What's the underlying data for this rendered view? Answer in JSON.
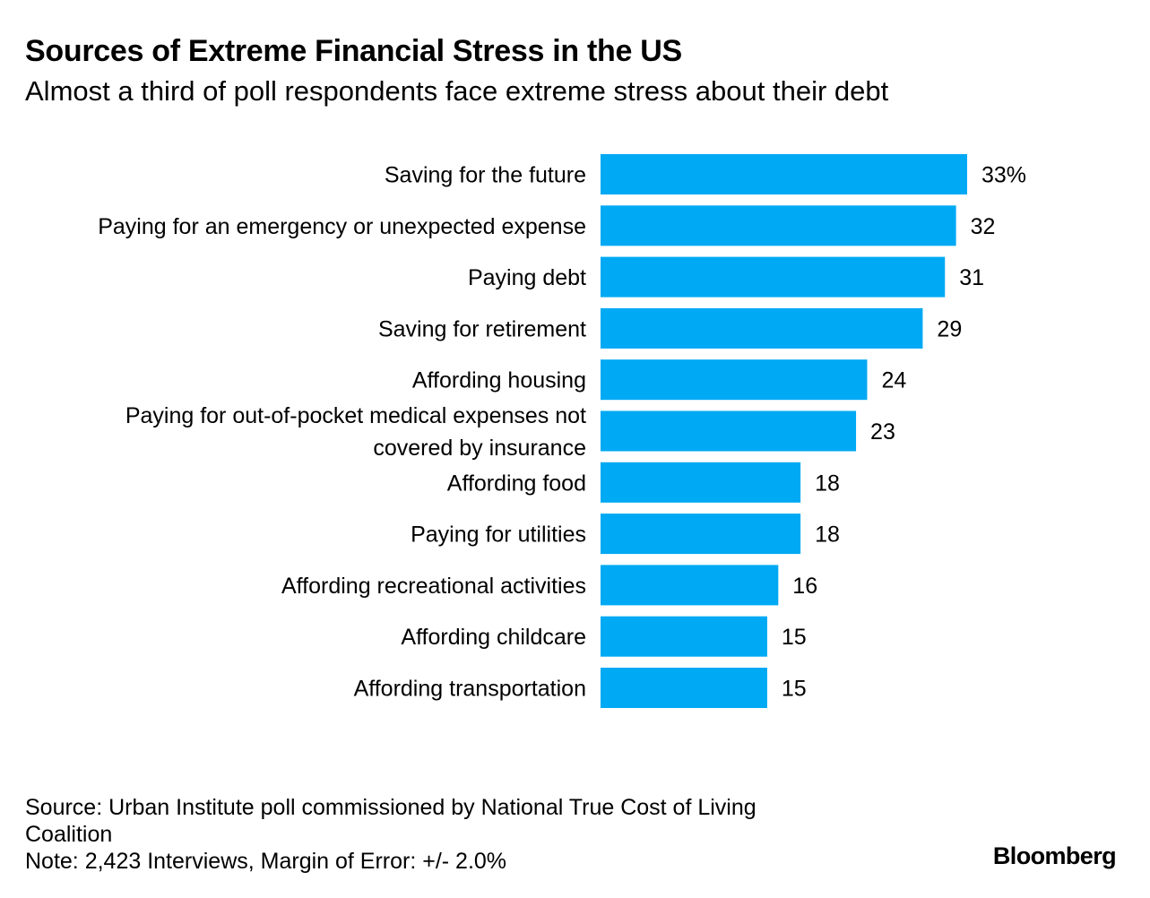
{
  "chart_data": {
    "type": "bar",
    "orientation": "horizontal",
    "title": "Sources of Extreme Financial Stress in the US",
    "subtitle": "Almost a third of poll respondents face extreme stress about their debt",
    "categories": [
      "Saving for the future",
      "Paying for an emergency or unexpected expense",
      "Paying debt",
      "Saving for retirement",
      "Affording housing",
      "Paying for out-of-pocket medical expenses not covered by insurance",
      "Affording food",
      "Paying for utilities",
      "Affording recreational activities",
      "Affording childcare",
      "Affording transportation"
    ],
    "category_lines": [
      [
        "Saving for the future"
      ],
      [
        "Paying for an emergency or unexpected expense"
      ],
      [
        "Paying debt"
      ],
      [
        "Saving for retirement"
      ],
      [
        "Affording housing"
      ],
      [
        "Paying for out-of-pocket medical expenses not",
        "covered by insurance"
      ],
      [
        "Affording food"
      ],
      [
        "Paying for utilities"
      ],
      [
        "Affording recreational activities"
      ],
      [
        "Affording childcare"
      ],
      [
        "Affording transportation"
      ]
    ],
    "values": [
      33,
      32,
      31,
      29,
      24,
      23,
      18,
      18,
      16,
      15,
      15
    ],
    "value_labels": [
      "33%",
      "32",
      "31",
      "29",
      "24",
      "23",
      "18",
      "18",
      "16",
      "15",
      "15"
    ],
    "unit": "%",
    "xlim": [
      0,
      33
    ],
    "grid": false,
    "legend": "none",
    "bar_color": "#00a9f4"
  },
  "footer": {
    "source": "Source: Urban Institute poll commissioned by National True Cost of Living\nCoalition",
    "note": "Note: 2,423 Interviews, Margin of Error: +/- 2.0%"
  },
  "brand": "Bloomberg"
}
